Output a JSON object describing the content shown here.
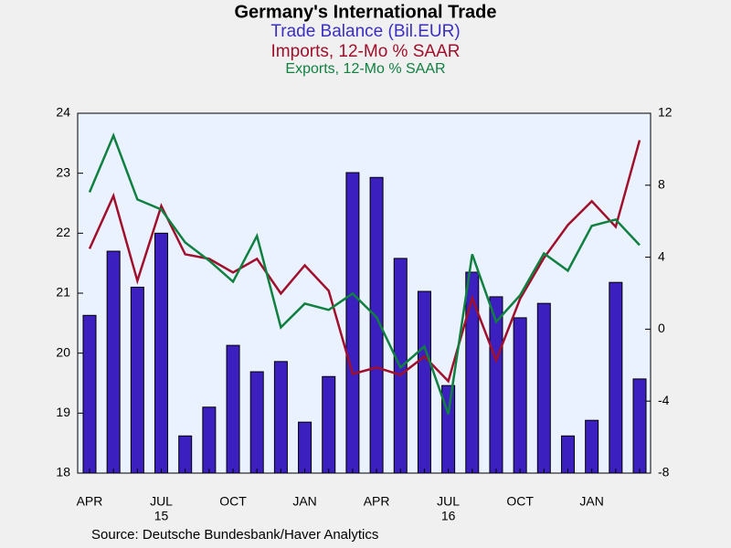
{
  "chart_data": {
    "type": "bar_line",
    "title": "Germany's International Trade",
    "subtitles": [
      {
        "text": "Trade Balance (Bil.EUR)",
        "color": "#3a2fc0"
      },
      {
        "text": "Imports, 12-Mo % SAAR",
        "color": "#a0102c"
      },
      {
        "text": "Exports, 12-Mo % SAAR",
        "color": "#108040"
      }
    ],
    "source": "Source:  Deutsche Bundesbank/Haver Analytics",
    "categories": [
      "APR",
      null,
      null,
      "JUL",
      null,
      null,
      "OCT",
      null,
      null,
      "JAN",
      null,
      null,
      "APR",
      null,
      null,
      "JUL",
      null,
      null,
      "OCT",
      null,
      null,
      "JAN",
      null,
      null
    ],
    "years": [
      null,
      null,
      null,
      "15",
      null,
      null,
      null,
      null,
      null,
      null,
      null,
      null,
      null,
      null,
      null,
      "16",
      null,
      null,
      null,
      null,
      null,
      null,
      null,
      null
    ],
    "series": [
      {
        "name": "Trade Balance (Bil.EUR)",
        "kind": "bar",
        "axis": "y",
        "color": "#3b1fbf",
        "values": [
          20.63,
          21.7,
          21.1,
          22.0,
          18.62,
          19.1,
          20.13,
          19.69,
          19.86,
          18.85,
          19.61,
          23.01,
          22.93,
          21.58,
          21.03,
          19.46,
          21.35,
          20.94,
          20.59,
          20.83,
          18.62,
          18.88,
          21.18,
          19.57
        ]
      },
      {
        "name": "Imports, 12-Mo % SAAR",
        "kind": "line",
        "axis": "y2",
        "color": "#a0102c",
        "values": [
          4.47,
          7.41,
          2.69,
          6.85,
          4.16,
          3.91,
          3.15,
          3.91,
          1.98,
          3.55,
          2.13,
          -2.49,
          -2.13,
          -2.54,
          -1.52,
          -2.89,
          1.73,
          -1.73,
          1.68,
          3.96,
          5.79,
          7.11,
          5.69,
          10.5
        ]
      },
      {
        "name": "Exports, 12-Mo % SAAR",
        "kind": "line",
        "axis": "y2",
        "color": "#108040",
        "values": [
          7.61,
          10.76,
          7.21,
          6.65,
          4.82,
          3.81,
          2.64,
          5.18,
          0.1,
          1.42,
          1.07,
          1.98,
          0.66,
          -2.13,
          -0.96,
          -4.72,
          4.16,
          0.41,
          1.88,
          4.21,
          3.25,
          5.74,
          6.09,
          4.67
        ]
      }
    ],
    "ylim": [
      18,
      24
    ],
    "yticks": [
      18,
      19,
      20,
      21,
      22,
      23,
      24
    ],
    "y2lim": [
      -8,
      12
    ],
    "y2ticks": [
      -8,
      -4,
      0,
      4,
      8,
      12
    ],
    "plot_background": "#eaf1ff",
    "grid": false
  }
}
